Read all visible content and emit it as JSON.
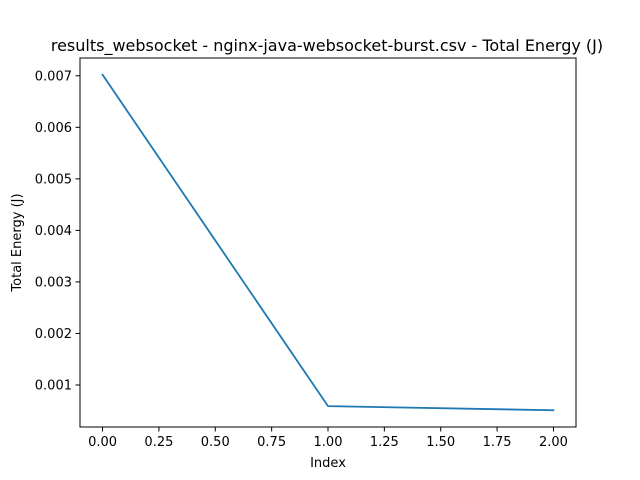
{
  "chart_data": {
    "type": "line",
    "title": "results_websocket - nginx-java-websocket-burst.csv - Total Energy (J)",
    "xlabel": "Index",
    "ylabel": "Total Energy (J)",
    "x": [
      0,
      1,
      2
    ],
    "series": [
      {
        "values": [
          0.00702,
          0.00059,
          0.00051
        ],
        "color": "#1f77b4"
      }
    ],
    "xlim": [
      -0.1,
      2.1
    ],
    "ylim": [
      0.000185,
      0.007345
    ],
    "xticks": [
      0.0,
      0.25,
      0.5,
      0.75,
      1.0,
      1.25,
      1.5,
      1.75,
      2.0
    ],
    "xtick_labels": [
      "0.00",
      "0.25",
      "0.50",
      "0.75",
      "1.00",
      "1.25",
      "1.50",
      "1.75",
      "2.00"
    ],
    "yticks": [
      0.001,
      0.002,
      0.003,
      0.004,
      0.005,
      0.006,
      0.007
    ],
    "ytick_labels": [
      "0.001",
      "0.002",
      "0.003",
      "0.004",
      "0.005",
      "0.006",
      "0.007"
    ],
    "grid": false,
    "legend": "none"
  }
}
